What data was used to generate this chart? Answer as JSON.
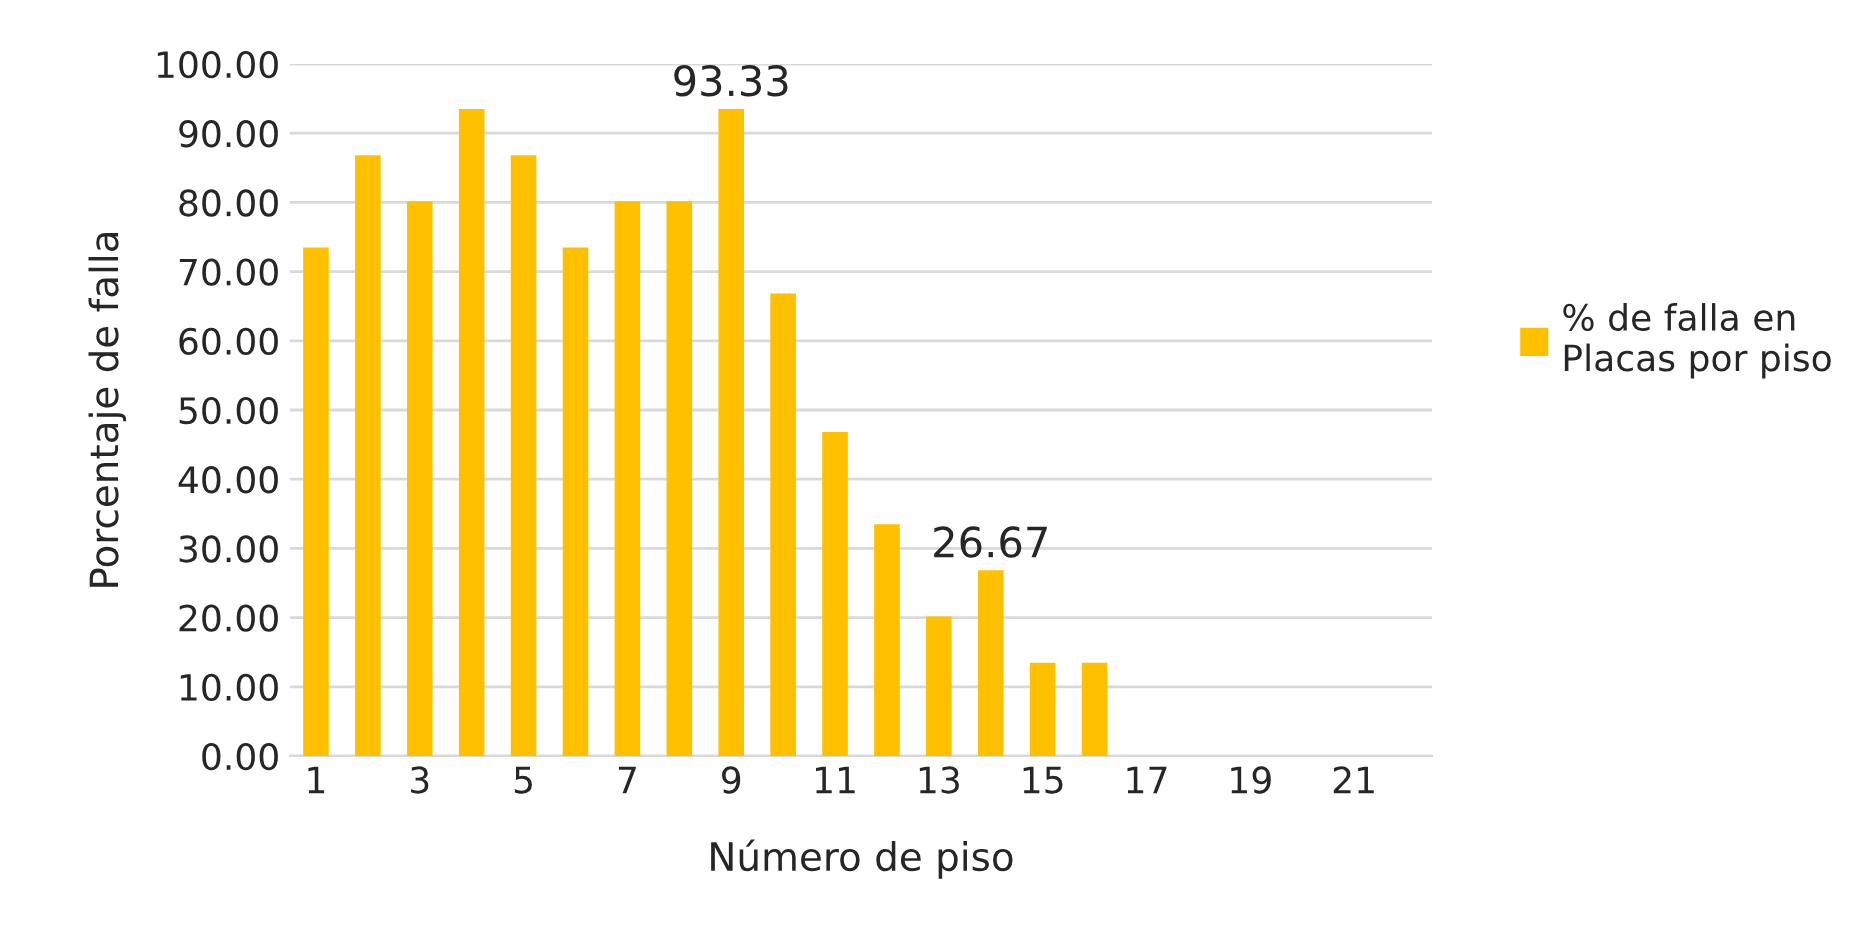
{
  "chart_data": {
    "type": "bar",
    "xlabel": "Número de piso",
    "ylabel": "Porcentaje de falla",
    "categories": [
      "1",
      null,
      "3",
      null,
      "5",
      null,
      "7",
      null,
      "9",
      null,
      "11",
      null,
      "13",
      null,
      "15",
      null,
      "17",
      null,
      "19",
      null,
      "21",
      null
    ],
    "series": [
      {
        "name": "% de falla en\nPlacas por piso",
        "color": "#ffc000",
        "values": [
          73.33,
          86.67,
          80,
          93.33,
          86.67,
          73.33,
          80,
          80,
          93.33,
          66.67,
          46.67,
          33.33,
          20,
          26.67,
          13.33,
          13.33,
          null,
          null,
          null,
          null,
          null,
          null
        ],
        "value_labels": [
          null,
          null,
          null,
          null,
          null,
          null,
          null,
          null,
          "93.33",
          null,
          null,
          null,
          null,
          "26.67",
          null,
          null,
          null,
          null,
          null,
          null,
          null,
          null
        ]
      }
    ],
    "ylim": [
      0,
      100
    ],
    "yticks": [
      {
        "value": 0,
        "label": "0.00"
      },
      {
        "value": 10,
        "label": "10.00"
      },
      {
        "value": 20,
        "label": "20.00"
      },
      {
        "value": 30,
        "label": "30.00"
      },
      {
        "value": 40,
        "label": "40.00"
      },
      {
        "value": 50,
        "label": "50.00"
      },
      {
        "value": 60,
        "label": "60.00"
      },
      {
        "value": 70,
        "label": "70.00"
      },
      {
        "value": 80,
        "label": "80.00"
      },
      {
        "value": 90,
        "label": "90.00"
      },
      {
        "value": 100,
        "label": "100.00"
      }
    ],
    "grid": "y",
    "legend": "right"
  }
}
